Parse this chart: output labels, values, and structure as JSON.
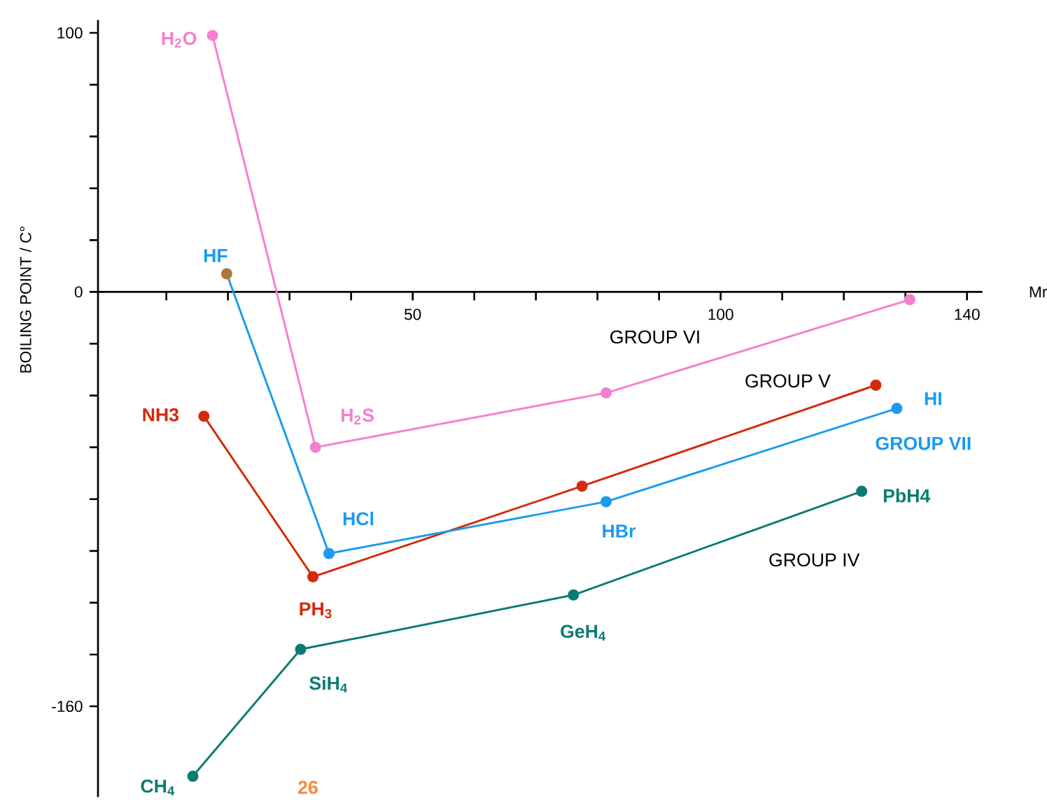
{
  "chart_data": {
    "type": "line",
    "xlabel": "Mr",
    "ylabel": "BOILING POINT / C°",
    "marker": "circle",
    "xlim": [
      -1.1,
      142.5
    ],
    "ylim": [
      -195,
      105
    ],
    "xticks": [
      {
        "value": 10,
        "label": null
      },
      {
        "value": 20,
        "label": null
      },
      {
        "value": 30,
        "label": null
      },
      {
        "value": 40,
        "label": null
      },
      50,
      {
        "value": 60,
        "label": null
      },
      {
        "value": 70,
        "label": null
      },
      {
        "value": 80,
        "label": null
      },
      {
        "value": 90,
        "label": null
      },
      100,
      {
        "value": 110,
        "label": null
      },
      {
        "value": 120,
        "label": null
      },
      {
        "value": 130,
        "label": null
      },
      140
    ],
    "yticks": [
      100,
      {
        "value": 80,
        "label": null
      },
      {
        "value": 60,
        "label": null
      },
      {
        "value": 40,
        "label": null
      },
      {
        "value": 20,
        "label": null
      },
      0,
      {
        "value": -20,
        "label": null
      },
      {
        "value": -40,
        "label": null
      },
      {
        "value": -60,
        "label": null
      },
      {
        "value": -80,
        "label": null
      },
      {
        "value": -100,
        "label": null
      },
      {
        "value": -120,
        "label": null
      },
      {
        "value": -140,
        "label": null
      },
      -160
    ],
    "annotations": [
      "26",
      {
        "text": "H$_{2}$O",
        "x": 17.5,
        "y": 99
      },
      {
        "text": "H$_{2}$S",
        "x": 34.2,
        "y": -60
      },
      {
        "text": "NH3",
        "x": 16.1,
        "y": -48
      },
      {
        "text": "PH$_{3}$",
        "x": 33.8,
        "y": -110
      },
      {
        "text": "HF",
        "x": 19.8,
        "y": 7
      },
      {
        "text": "HCl",
        "x": 36.4,
        "y": -101
      },
      {
        "text": "HBr",
        "x": 81.4,
        "y": -81
      },
      {
        "text": "HI",
        "x": 128.6,
        "y": -45
      },
      {
        "text": "CH$_{4}$",
        "x": 14.3,
        "y": -187
      },
      {
        "text": "SiH$_{4}$",
        "x": 31.8,
        "y": -138
      },
      {
        "text": "GeH$_{4}$",
        "x": 76.1,
        "y": -117
      },
      {
        "text": "PbH4",
        "x": 122.9,
        "y": -77
      }
    ],
    "series": [
      {
        "name": "GROUP VI",
        "color": "#f57fcf",
        "x": [
          17.5,
          34.2,
          81.4,
          130.7
        ],
        "values": [
          99,
          -60,
          -39,
          -3
        ]
      },
      {
        "name": "GROUP V",
        "color": "#d42a0a",
        "x": [
          16.1,
          33.8,
          77.5,
          125.2
        ],
        "values": [
          -48,
          -110,
          -75,
          -36
        ]
      },
      {
        "name": "GROUP VII",
        "color": "#1a9af0",
        "colors": [
          "#a8783e",
          "#1a9af0",
          "#1a9af0",
          "#1a9af0"
        ],
        "x": [
          19.8,
          36.4,
          81.4,
          128.6
        ],
        "values": [
          7,
          -101,
          -81,
          -45
        ]
      },
      {
        "name": "GROUP IV",
        "color": "#0b7b72",
        "x": [
          14.3,
          31.8,
          76.1,
          122.9
        ],
        "values": [
          -187,
          -138,
          -117,
          -77
        ]
      }
    ]
  }
}
